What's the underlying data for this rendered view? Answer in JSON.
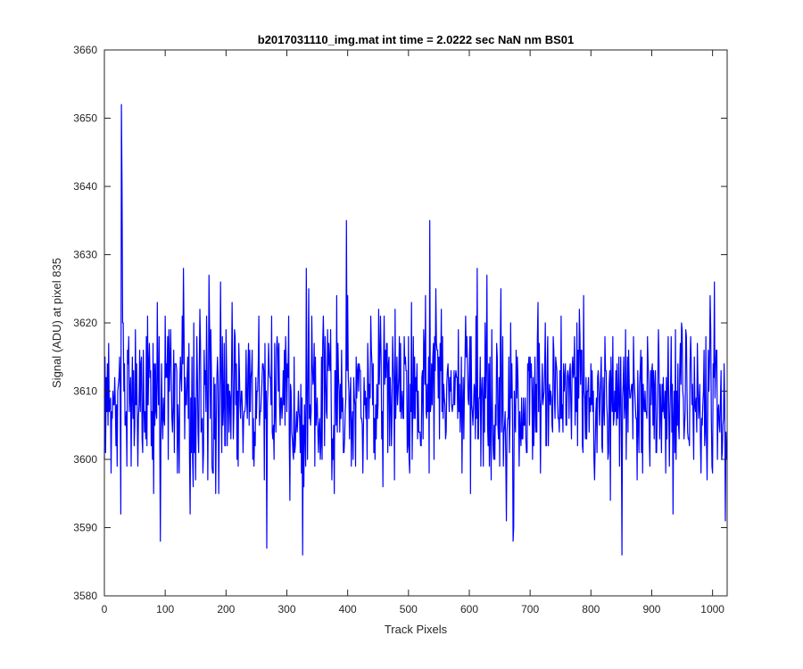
{
  "chart_data": {
    "type": "line",
    "title": "b2017031110_img.mat int time = 2.0222 sec  NaN nm BS01",
    "xlabel": "Track Pixels",
    "ylabel": "Signal (ADU) at pixel 835",
    "xlim": [
      0,
      1024
    ],
    "ylim": [
      3580,
      3660
    ],
    "grid": false,
    "x_ticks": [
      "0",
      "100",
      "200",
      "300",
      "400",
      "500",
      "600",
      "700",
      "800",
      "900",
      "1000"
    ],
    "y_ticks": [
      "3580",
      "3590",
      "3600",
      "3610",
      "3620",
      "3630",
      "3640",
      "3650",
      "3660"
    ],
    "series": [
      {
        "color": "#0000ff",
        "x_start": 0,
        "x_step": 1,
        "stats": {
          "mean": 3609,
          "std": 6.3,
          "min": 3586,
          "max": 3652
        },
        "notable_points": [
          {
            "x": 1,
            "y": 3615
          },
          {
            "x": 27,
            "y": 3592
          },
          {
            "x": 28,
            "y": 3652
          },
          {
            "x": 29,
            "y": 3640
          },
          {
            "x": 92,
            "y": 3588
          },
          {
            "x": 267,
            "y": 3587
          },
          {
            "x": 326,
            "y": 3586
          },
          {
            "x": 398,
            "y": 3635
          },
          {
            "x": 535,
            "y": 3635
          },
          {
            "x": 672,
            "y": 3588
          },
          {
            "x": 851,
            "y": 3586
          },
          {
            "x": 1021,
            "y": 3591
          },
          {
            "x": 1023,
            "y": 3600
          }
        ]
      }
    ]
  }
}
